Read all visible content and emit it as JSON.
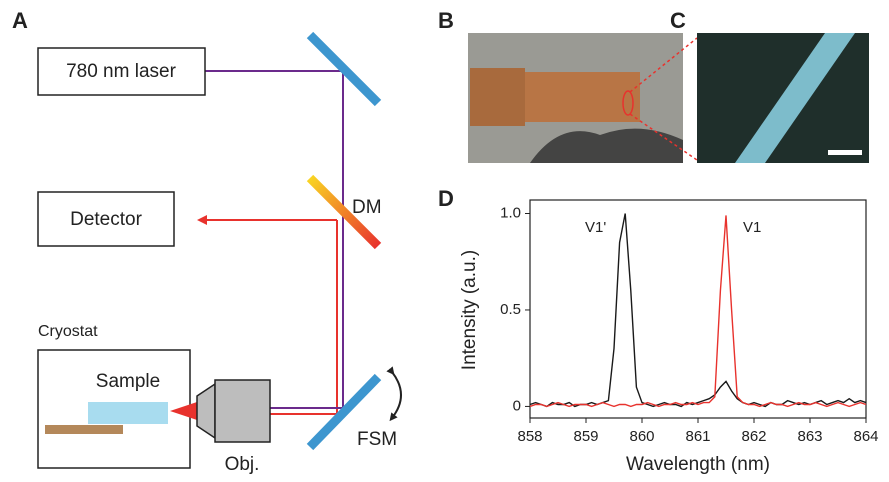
{
  "panels": [
    "A",
    "B",
    "C",
    "D"
  ],
  "diagram": {
    "laser": "780 nm laser",
    "detector": "Detector",
    "dichroic": "DM",
    "cryostat": "Cryostat",
    "sample": "Sample",
    "objective": "Obj.",
    "mirror": "FSM"
  },
  "chart_data": {
    "type": "line",
    "xlabel": "Wavelength (nm)",
    "ylabel": "Intensity (a.u.)",
    "annotations": [
      "V1'",
      "V1"
    ],
    "xlim": [
      858,
      864
    ],
    "ylim": [
      -0.06,
      1.07
    ],
    "xticks": [
      858,
      859,
      860,
      861,
      862,
      863,
      864
    ],
    "yticks": [
      0,
      0.5,
      {
        "value": 1,
        "label": "1.0"
      }
    ],
    "x": [
      858.0,
      858.1,
      858.2,
      858.3,
      858.4,
      858.5,
      858.6,
      858.7,
      858.8,
      858.9,
      859.0,
      859.1,
      859.2,
      859.3,
      859.4,
      859.5,
      859.6,
      859.7,
      859.8,
      859.9,
      860.0,
      860.1,
      860.2,
      860.3,
      860.4,
      860.5,
      860.6,
      860.7,
      860.8,
      860.9,
      861.0,
      861.1,
      861.2,
      861.3,
      861.4,
      861.5,
      861.6,
      861.7,
      861.8,
      861.9,
      862.0,
      862.1,
      862.2,
      862.3,
      862.4,
      862.5,
      862.6,
      862.7,
      862.8,
      862.9,
      863.0,
      863.1,
      863.2,
      863.3,
      863.4,
      863.5,
      863.6,
      863.7,
      863.8,
      863.9,
      864.0
    ],
    "series": [
      {
        "color": "#1a1a1a",
        "values": [
          0.01,
          0.02,
          0.01,
          0.0,
          0.02,
          0.01,
          0.01,
          0.02,
          0.0,
          0.01,
          0.01,
          0.02,
          0.01,
          0.02,
          0.03,
          0.3,
          0.85,
          1.0,
          0.6,
          0.1,
          0.02,
          0.01,
          0.0,
          0.01,
          0.02,
          0.01,
          0.01,
          0.0,
          0.02,
          0.01,
          0.02,
          0.03,
          0.04,
          0.06,
          0.1,
          0.13,
          0.08,
          0.04,
          0.02,
          0.01,
          0.02,
          0.01,
          0.0,
          0.02,
          0.01,
          0.01,
          0.03,
          0.02,
          0.01,
          0.02,
          0.01,
          0.02,
          0.03,
          0.01,
          0.02,
          0.03,
          0.02,
          0.04,
          0.02,
          0.03,
          0.02
        ]
      },
      {
        "color": "#e8322d",
        "values": [
          0.0,
          0.01,
          0.01,
          0.0,
          0.01,
          0.02,
          0.01,
          0.0,
          0.01,
          0.01,
          0.01,
          0.0,
          0.01,
          0.02,
          0.01,
          0.0,
          0.01,
          0.01,
          0.0,
          0.01,
          0.01,
          0.02,
          0.01,
          0.0,
          0.01,
          0.01,
          0.02,
          0.01,
          0.01,
          0.02,
          0.01,
          0.02,
          0.02,
          0.05,
          0.6,
          0.99,
          0.5,
          0.05,
          0.02,
          0.01,
          0.01,
          0.0,
          0.01,
          0.02,
          0.01,
          0.01,
          0.0,
          0.01,
          0.02,
          0.01,
          0.01,
          0.02,
          0.01,
          0.0,
          0.01,
          0.02,
          0.01,
          0.0,
          0.01,
          0.02,
          0.01
        ]
      }
    ]
  }
}
